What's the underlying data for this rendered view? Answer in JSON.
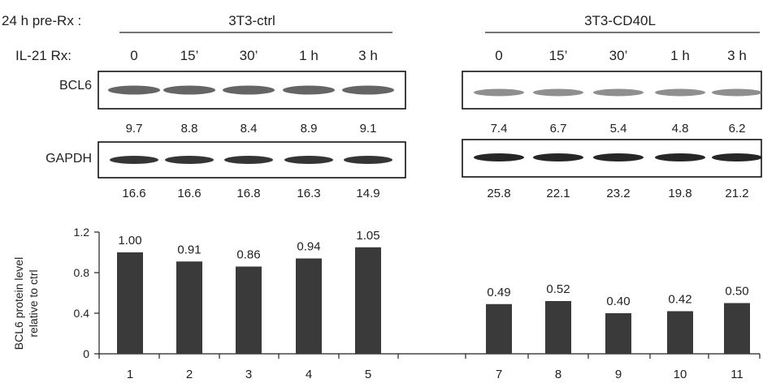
{
  "header": {
    "pre_rx_label": "24 h pre-Rx :",
    "group_ctrl": "3T3-ctrl",
    "group_cd40l": "3T3-CD40L",
    "il21_label": "IL-21 Rx:"
  },
  "timepoints_ctrl": [
    "0",
    "15’",
    "30’",
    "1 h",
    "3 h"
  ],
  "timepoints_cd40l": [
    "0",
    "15’",
    "30’",
    "1 h",
    "3 h"
  ],
  "blots": {
    "bcl6_label": "BCL6",
    "gapdh_label": "GAPDH",
    "bcl6_ctrl_values": [
      "9.7",
      "8.8",
      "8.4",
      "8.9",
      "9.1"
    ],
    "bcl6_cd40l_values": [
      "7.4",
      "6.7",
      "5.4",
      "4.8",
      "6.2"
    ],
    "gapdh_ctrl_values": [
      "16.6",
      "16.6",
      "16.8",
      "16.3",
      "14.9"
    ],
    "gapdh_cd40l_values": [
      "25.8",
      "22.1",
      "23.2",
      "19.8",
      "21.2"
    ]
  },
  "chart_data": {
    "type": "bar",
    "categories": [
      "1",
      "2",
      "3",
      "4",
      "5",
      "7",
      "8",
      "9",
      "10",
      "11"
    ],
    "values": [
      1.0,
      0.91,
      0.86,
      0.94,
      1.05,
      0.49,
      0.52,
      0.4,
      0.42,
      0.5
    ],
    "value_labels": [
      "1.00",
      "0.91",
      "0.86",
      "0.94",
      "1.05",
      "0.49",
      "0.52",
      "0.40",
      "0.42",
      "0.50"
    ],
    "ylabel_line1": "BCL6 protein level",
    "ylabel_line2": "relative to ctrl",
    "yticks": [
      "0",
      "0.4",
      "0.8",
      "1.2"
    ],
    "ylim": [
      0,
      1.2
    ],
    "bar_color": "#3a3a3a",
    "grid": false
  }
}
